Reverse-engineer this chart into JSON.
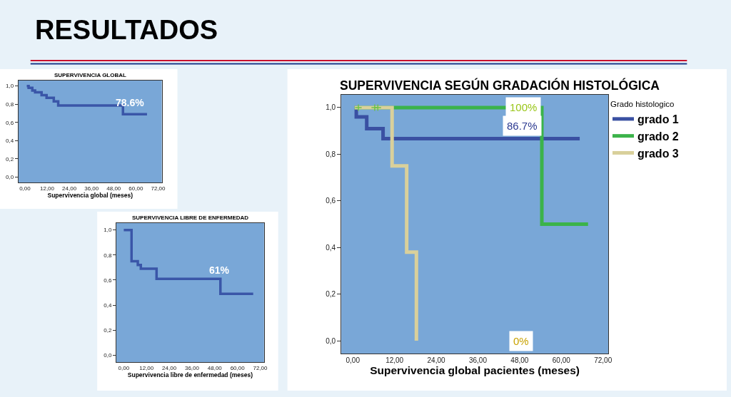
{
  "chart_data": [
    {
      "type": "other",
      "title": "RESULTADOS"
    },
    {
      "type": "step",
      "title": "SUPERVIVENCIA GLOBAL",
      "xlabel": "Supervivencia global (meses)",
      "x": [
        1,
        2,
        4,
        5.5,
        9,
        11.7,
        15.6,
        18,
        53,
        66
      ],
      "series": [
        {
          "color": "#3a56a8",
          "values": [
            1.0,
            0.98,
            0.95,
            0.93,
            0.9,
            0.87,
            0.83,
            0.786,
            0.69,
            0.69
          ]
        }
      ],
      "xlim": [
        -3.5,
        74
      ],
      "xticks": [
        {
          "value": 0,
          "label": "0,00"
        },
        {
          "value": 12,
          "label": "12,00"
        },
        {
          "value": 24,
          "label": "24,00"
        },
        {
          "value": 36,
          "label": "36,00"
        },
        {
          "value": 48,
          "label": "48,00"
        },
        {
          "value": 60,
          "label": "60,00"
        },
        {
          "value": 72,
          "label": "72,00"
        }
      ],
      "ylim": [
        -0.06,
        1.06
      ],
      "yticks": [
        {
          "value": 0,
          "label": "0,0"
        },
        {
          "value": 0.2,
          "label": "0,2"
        },
        {
          "value": 0.4,
          "label": "0,4"
        },
        {
          "value": 0.6,
          "label": "0,6"
        },
        {
          "value": 0.8,
          "label": "0,8"
        },
        {
          "value": 1,
          "label": "1,0"
        }
      ],
      "annotations": [
        "78.6%"
      ]
    },
    {
      "type": "step",
      "title": "SUPERVIVENCIA LIBRE DE ENFERMEDAD",
      "xlabel": "Supervivencia libre de enfermedad (meses)",
      "x": [
        0,
        4.1,
        7.4,
        9,
        17.3,
        51,
        68.3
      ],
      "series": [
        {
          "color": "#3a56a8",
          "values": [
            1.0,
            0.75,
            0.72,
            0.69,
            0.61,
            0.49,
            0.49
          ]
        }
      ],
      "xlim": [
        -3.9,
        74
      ],
      "xticks": [
        {
          "value": 0,
          "label": "0,00"
        },
        {
          "value": 12,
          "label": "12,00"
        },
        {
          "value": 24,
          "label": "24,00"
        },
        {
          "value": 36,
          "label": "36,00"
        },
        {
          "value": 48,
          "label": "48,00"
        },
        {
          "value": 60,
          "label": "60,00"
        },
        {
          "value": 72,
          "label": "72,00"
        }
      ],
      "ylim": [
        -0.055,
        1.055
      ],
      "yticks": [
        {
          "value": 0,
          "label": "0,0"
        },
        {
          "value": 0.2,
          "label": "0,2"
        },
        {
          "value": 0.4,
          "label": "0,4"
        },
        {
          "value": 0.6,
          "label": "0,6"
        },
        {
          "value": 0.8,
          "label": "0,8"
        },
        {
          "value": 1,
          "label": "1,0"
        }
      ],
      "annotations": [
        "61%"
      ]
    },
    {
      "type": "step",
      "title": "SUPERVIVENCIA SEGÚN GRADACIÓN HISTOLÓGICA",
      "xlabel": "Supervivencia global pacientes (meses)",
      "legend_title": "Grado histologico",
      "legend": "top right",
      "series": [
        {
          "name": "grado 1",
          "color": "#3a50a2",
          "x": [
            0.5,
            1,
            4,
            8.7,
            65.3
          ],
          "values": [
            1.0,
            0.96,
            0.91,
            0.867,
            0.867
          ]
        },
        {
          "name": "grado 2",
          "color": "#3bb34a",
          "x": [
            0.5,
            54.4,
            67.7
          ],
          "values": [
            1.0,
            0.5,
            0.5
          ]
        },
        {
          "name": "grado 3",
          "color": "#d9d09b",
          "x": [
            0.5,
            11.3,
            15.5,
            18.3
          ],
          "values": [
            1.0,
            0.75,
            0.38,
            0.0
          ]
        },
        {
          "type": "scatter",
          "color": "#6cc24a",
          "marker": "cross",
          "x": [
            1.6,
            6.3,
            7.2
          ],
          "values": [
            1.0,
            1.0,
            1.0
          ]
        }
      ],
      "xlim": [
        -3.3,
        73.5
      ],
      "xticks": [
        {
          "value": 0,
          "label": "0,00"
        },
        {
          "value": 12,
          "label": "12,00"
        },
        {
          "value": 24,
          "label": "24,00"
        },
        {
          "value": 36,
          "label": "36,00"
        },
        {
          "value": 48,
          "label": "48,00"
        },
        {
          "value": 60,
          "label": "60,00"
        },
        {
          "value": 72,
          "label": "72,00"
        }
      ],
      "ylim": [
        -0.055,
        1.055
      ],
      "yticks": [
        {
          "value": 0,
          "label": "0,0"
        },
        {
          "value": 0.2,
          "label": "0,2"
        },
        {
          "value": 0.4,
          "label": "0,4"
        },
        {
          "value": 0.6,
          "label": "0,6"
        },
        {
          "value": 0.8,
          "label": "0,8"
        },
        {
          "value": 1,
          "label": "1,0"
        }
      ],
      "annotations": [
        {
          "text": "100%",
          "x": 49,
          "y": 1.0
        },
        "86.7%",
        {
          "text": "0%",
          "x": 48.5,
          "y": 0.0
        }
      ]
    }
  ]
}
